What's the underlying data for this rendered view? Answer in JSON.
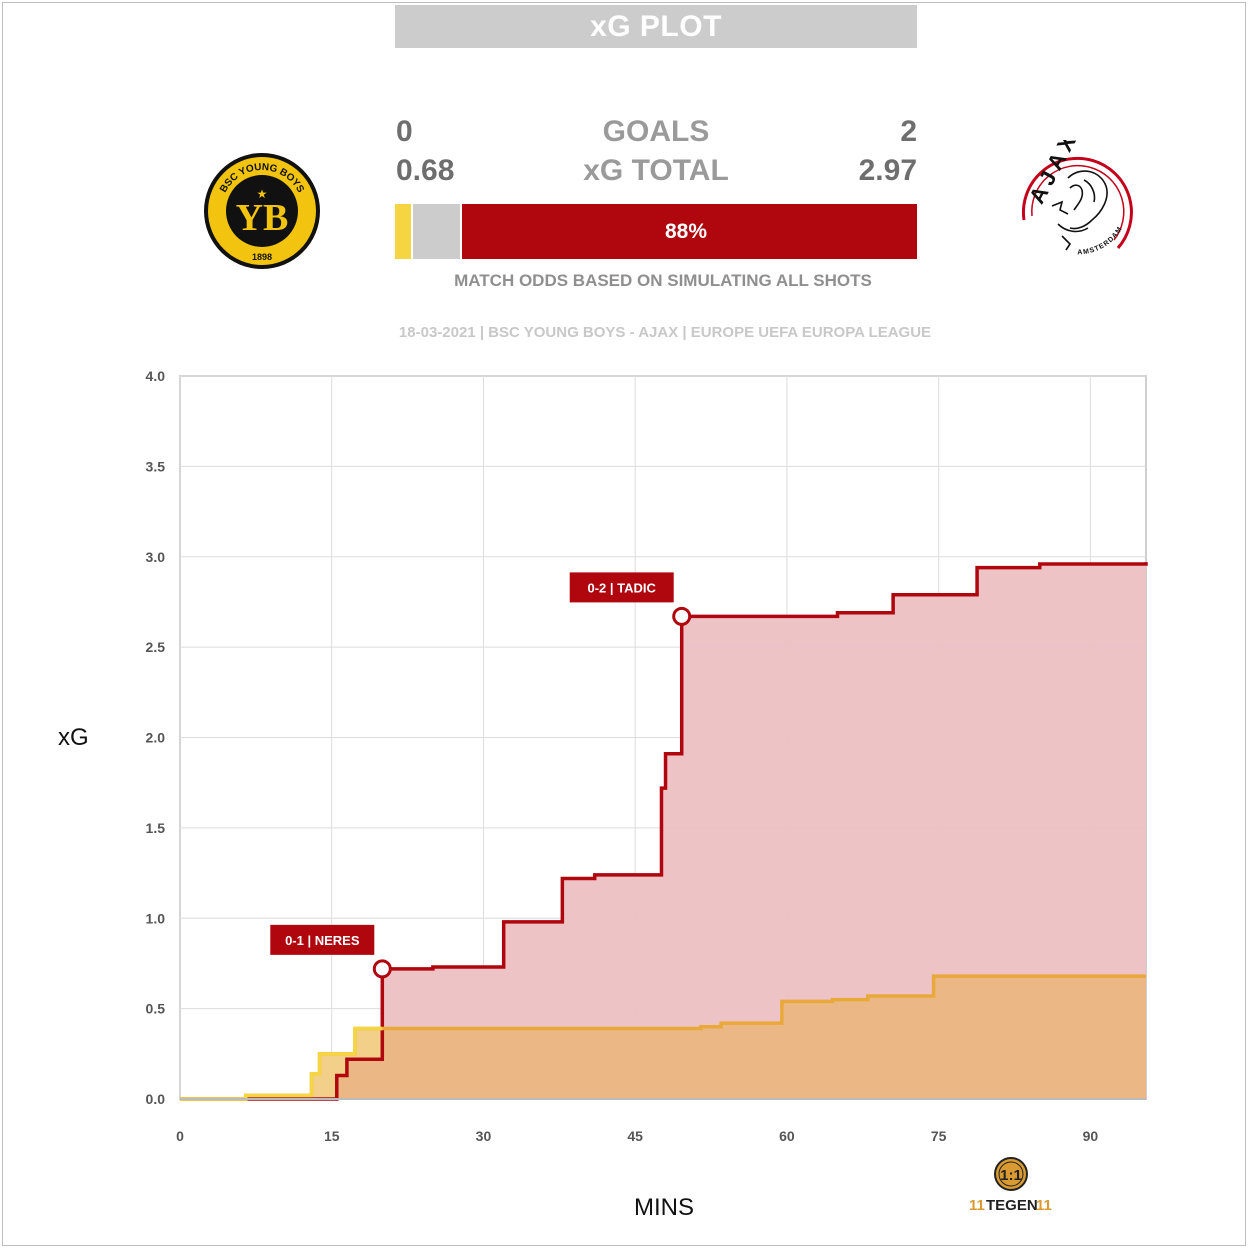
{
  "header": {
    "title": "xG PLOT",
    "goals_label": "GOALS",
    "xg_label": "xG TOTAL",
    "home_goals": "0",
    "away_goals": "2",
    "home_xg": "0.68",
    "away_xg": "2.97",
    "odds_away_text": "88%",
    "odds_caption": "MATCH ODDS BASED ON SIMULATING ALL SHOTS",
    "match_info": "18-03-2021 | BSC YOUNG BOYS - AJAX | EUROPE UEFA EUROPA LEAGUE"
  },
  "odds": {
    "home": 0.03,
    "draw": 0.09,
    "away": 0.88
  },
  "logos": {
    "home": {
      "icon": "young-boys-crest-icon",
      "arc_text": "BSC YOUNG BOYS",
      "monogram": "YB",
      "year": "1898"
    },
    "away": {
      "icon": "ajax-crest-icon",
      "name": "AJAX",
      "city": "AMSTERDAM"
    },
    "brand": {
      "icon": "11tegen11-logo-icon",
      "text_left": "11",
      "text_mid": "TEGEN",
      "text_right": "11"
    }
  },
  "colors": {
    "home": "#f5d541",
    "home_line": "#e8a93a",
    "away": "#b0060e",
    "away_fill": "#ecc0c3",
    "draw": "#cccccc",
    "grid": "#dddddd"
  },
  "chart_data": {
    "type": "area",
    "xlabel": "MINS",
    "ylabel": "xG",
    "xlim": [
      0,
      95.5
    ],
    "ylim": [
      0,
      4
    ],
    "xticks": [
      0,
      15,
      30,
      45,
      60,
      75,
      90
    ],
    "yticks": [
      "0.0",
      "0.5",
      "1.0",
      "1.5",
      "2.0",
      "2.5",
      "3.0",
      "3.5",
      "4.0"
    ],
    "grid": true,
    "series": [
      {
        "name": "BSC YOUNG BOYS",
        "points": [
          [
            0,
            0
          ],
          [
            6.5,
            0.02
          ],
          [
            13,
            0.14
          ],
          [
            13.8,
            0.25
          ],
          [
            17.3,
            0.39
          ],
          [
            51.5,
            0.4
          ],
          [
            53.5,
            0.42
          ],
          [
            59.5,
            0.54
          ],
          [
            64.5,
            0.55
          ],
          [
            68,
            0.57
          ],
          [
            74.5,
            0.68
          ],
          [
            95.5,
            0.68
          ]
        ]
      },
      {
        "name": "AJAX",
        "points": [
          [
            0,
            0
          ],
          [
            15.5,
            0.13
          ],
          [
            16.5,
            0.22
          ],
          [
            20,
            0.72
          ],
          [
            25,
            0.73
          ],
          [
            32,
            0.98
          ],
          [
            37.8,
            1.22
          ],
          [
            41,
            1.24
          ],
          [
            47.6,
            1.72
          ],
          [
            48,
            1.91
          ],
          [
            49.6,
            2.67
          ],
          [
            65,
            2.69
          ],
          [
            70.5,
            2.79
          ],
          [
            78.8,
            2.94
          ],
          [
            85,
            2.96
          ],
          [
            95.5,
            2.97
          ]
        ]
      }
    ],
    "annotations": [
      {
        "label": "0-1 | NERES",
        "x": 20,
        "y": 0.72
      },
      {
        "label": "0-2 | TADIC",
        "x": 49.6,
        "y": 2.67
      }
    ]
  }
}
